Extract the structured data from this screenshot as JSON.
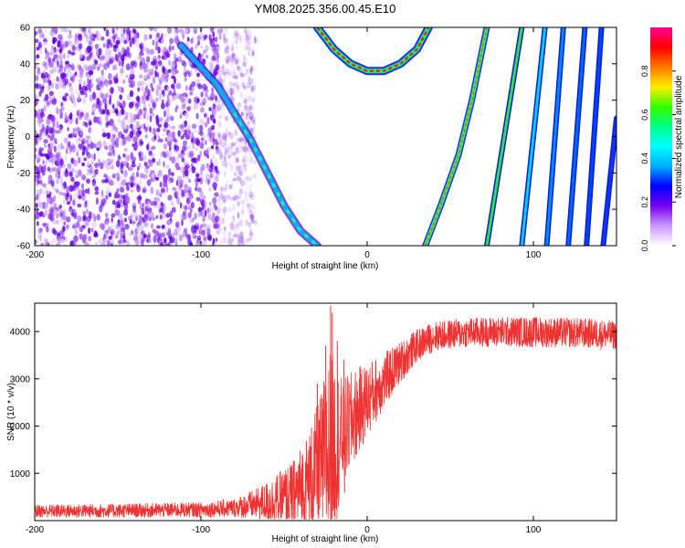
{
  "figure_title": "YM08.2025.356.00.45.E10",
  "chart_data": [
    {
      "type": "heatmap",
      "title": "YM08.2025.356.00.45.E10",
      "xlabel": "Height of straight line (km)",
      "ylabel": "Frequency (Hz)",
      "xlim": [
        -200,
        150
      ],
      "ylim": [
        -60,
        60
      ],
      "xticks": [
        -200,
        -100,
        0,
        100
      ],
      "yticks": [
        -60,
        -40,
        -20,
        0,
        20,
        40,
        60
      ],
      "colorbar": {
        "label": "Normalized spectral amplitude",
        "range": [
          0.0,
          1.0
        ],
        "ticks": [
          "0.0",
          "0.2",
          "0.4",
          "0.6",
          "0.8"
        ],
        "stops": [
          "#ffffff",
          "#cc99ff",
          "#7700ee",
          "#0000ff",
          "#00aaff",
          "#00ffff",
          "#00ff88",
          "#33ff00",
          "#ffee00",
          "#ff7700",
          "#ff0000",
          "#ff0099"
        ]
      },
      "features": [
        {
          "name": "noise-region",
          "x_range": [
            -200,
            -75
          ],
          "f_range": [
            -60,
            60
          ]
        },
        {
          "name": "diagonal-ridge",
          "points": [
            [
              -112,
              50
            ],
            [
              -100,
              38
            ],
            [
              -90,
              28
            ],
            [
              -80,
              13
            ],
            [
              -70,
              -2
            ],
            [
              -60,
              -20
            ],
            [
              -50,
              -38
            ],
            [
              -40,
              -52
            ],
            [
              -30,
              -60
            ]
          ]
        },
        {
          "name": "parabola-arc",
          "points": [
            [
              -30,
              60
            ],
            [
              -20,
              48
            ],
            [
              -10,
              40
            ],
            [
              0,
              36
            ],
            [
              10,
              36
            ],
            [
              20,
              40
            ],
            [
              30,
              48
            ],
            [
              37,
              60
            ]
          ]
        },
        {
          "name": "curve-ridge",
          "points": [
            [
              35,
              -60
            ],
            [
              45,
              -36
            ],
            [
              55,
              -10
            ],
            [
              63,
              20
            ],
            [
              72,
              60
            ]
          ]
        },
        {
          "name": "line-1",
          "points": [
            [
              72,
              -60
            ],
            [
              93,
              60
            ]
          ],
          "color": "#33dd44"
        },
        {
          "name": "line-2",
          "points": [
            [
              93,
              -60
            ],
            [
              107,
              60
            ]
          ],
          "color": "#00ccee"
        },
        {
          "name": "line-3",
          "points": [
            [
              108,
              -60
            ],
            [
              118,
              60
            ]
          ],
          "color": "#0088ff"
        },
        {
          "name": "line-4",
          "points": [
            [
              121,
              -60
            ],
            [
              131,
              60
            ]
          ],
          "color": "#0066ff"
        },
        {
          "name": "line-5",
          "points": [
            [
              132,
              -60
            ],
            [
              141,
              60
            ]
          ],
          "color": "#0044ff"
        },
        {
          "name": "line-6",
          "points": [
            [
              142,
              -60
            ],
            [
              150,
              10
            ]
          ],
          "color": "#1133ff"
        }
      ]
    },
    {
      "type": "line",
      "xlabel": "Height of straight line (km)",
      "ylabel": "SNR (10 * v/v)",
      "xlim": [
        -200,
        150
      ],
      "ylim": [
        0,
        4600
      ],
      "xticks": [
        -200,
        -100,
        0,
        100
      ],
      "yticks": [
        1000,
        2000,
        3000,
        4000
      ],
      "color": "#ee3333",
      "series": [
        {
          "name": "SNR",
          "envelope": [
            {
              "x": -200,
              "mean": 200,
              "amp": 140
            },
            {
              "x": -150,
              "mean": 210,
              "amp": 150
            },
            {
              "x": -100,
              "mean": 230,
              "amp": 160
            },
            {
              "x": -80,
              "mean": 270,
              "amp": 200
            },
            {
              "x": -65,
              "mean": 360,
              "amp": 350
            },
            {
              "x": -55,
              "mean": 420,
              "amp": 550
            },
            {
              "x": -45,
              "mean": 550,
              "amp": 700
            },
            {
              "x": -35,
              "mean": 800,
              "amp": 1100
            },
            {
              "x": -28,
              "mean": 1200,
              "amp": 1500
            },
            {
              "x": -22,
              "mean": 1500,
              "amp": 2200
            },
            {
              "x": -15,
              "mean": 1800,
              "amp": 1200
            },
            {
              "x": -8,
              "mean": 2200,
              "amp": 1000
            },
            {
              "x": 0,
              "mean": 2550,
              "amp": 800
            },
            {
              "x": 10,
              "mean": 2950,
              "amp": 600
            },
            {
              "x": 20,
              "mean": 3350,
              "amp": 450
            },
            {
              "x": 30,
              "mean": 3700,
              "amp": 350
            },
            {
              "x": 40,
              "mean": 3900,
              "amp": 320
            },
            {
              "x": 60,
              "mean": 3980,
              "amp": 320
            },
            {
              "x": 80,
              "mean": 4000,
              "amp": 320
            },
            {
              "x": 100,
              "mean": 3990,
              "amp": 330
            },
            {
              "x": 120,
              "mean": 3980,
              "amp": 320
            },
            {
              "x": 140,
              "mean": 3950,
              "amp": 320
            },
            {
              "x": 150,
              "mean": 3920,
              "amp": 300
            }
          ],
          "spikes": [
            {
              "x": -22,
              "y": 4550
            },
            {
              "x": -21,
              "y": 4400
            },
            {
              "x": -25,
              "y": 3700
            },
            {
              "x": -30,
              "y": 2900
            },
            {
              "x": -18,
              "y": 3800
            },
            {
              "x": -14,
              "y": 3400
            }
          ]
        }
      ]
    }
  ]
}
